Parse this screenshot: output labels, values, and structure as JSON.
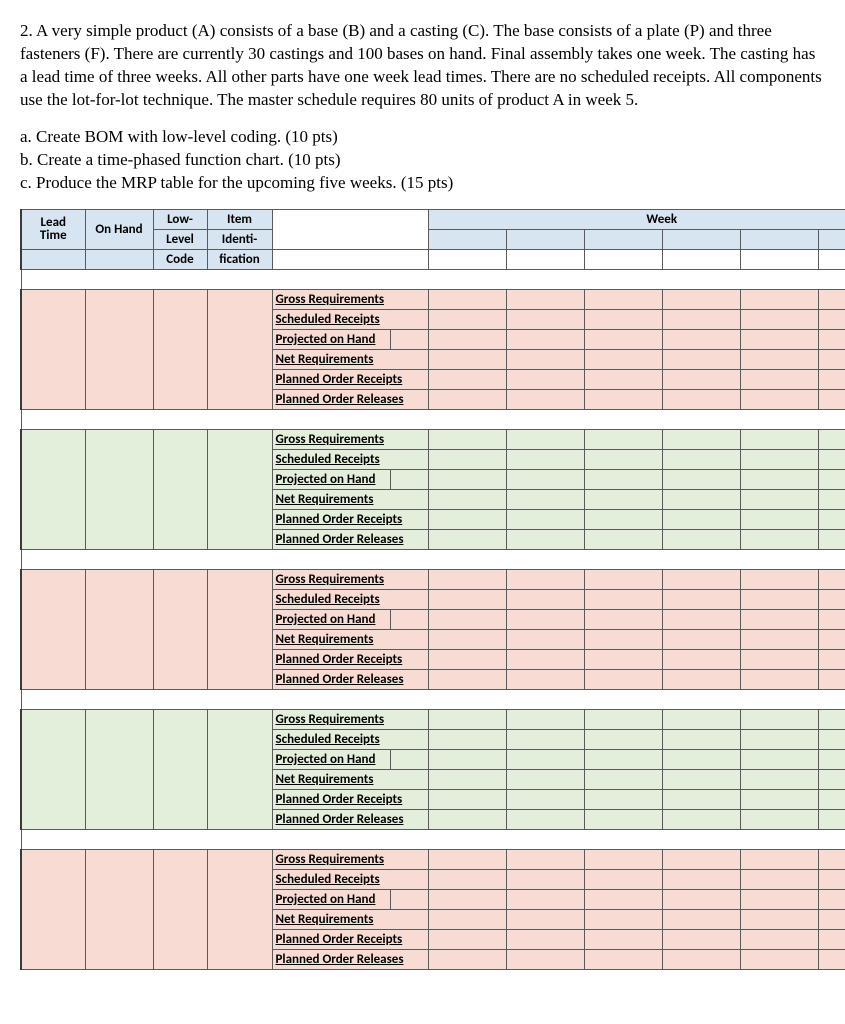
{
  "problem": {
    "main": "2. A very simple product (A) consists of a base (B) and a casting (C). The base consists of a plate (P) and three fasteners (F). There are currently 30 castings and 100 bases on hand. Final assembly takes one week. The casting has a lead time of three weeks. All other parts have one week lead times. There are no scheduled receipts. All components use the lot-for-lot technique. The master schedule requires 80 units of product A in week 5.",
    "a": "a. Create BOM with low-level coding. (10 pts)",
    "b": "b. Create a time-phased function chart. (10 pts)",
    "c": "c. Produce the MRP table for the upcoming five weeks. (15 pts)"
  },
  "headers": {
    "lead_time": "Lead Time",
    "on_hand": "On Hand",
    "low_level_1": "Low-",
    "low_level_2": "Level",
    "low_level_3": "Code",
    "item_1": "Item",
    "item_2": "Identi-",
    "item_3": "fication",
    "week": "Week"
  },
  "row_labels": {
    "gross": "Gross Requirements",
    "sched": "Scheduled Receipts",
    "proj": "Projected on Hand",
    "net": "Net Requirements",
    "por_rec": "Planned Order Receipts",
    "por_rel": "Planned Order Releases"
  },
  "sections": [
    {
      "bg": "bg-peach"
    },
    {
      "bg": "bg-green"
    },
    {
      "bg": "bg-peach"
    },
    {
      "bg": "bg-green"
    },
    {
      "bg": "bg-peach"
    }
  ],
  "colors": {
    "header_bg": "#d7e4f2",
    "peach_bg": "#f8dcd3",
    "green_bg": "#e3eedb",
    "border": "#5a5a5a"
  }
}
